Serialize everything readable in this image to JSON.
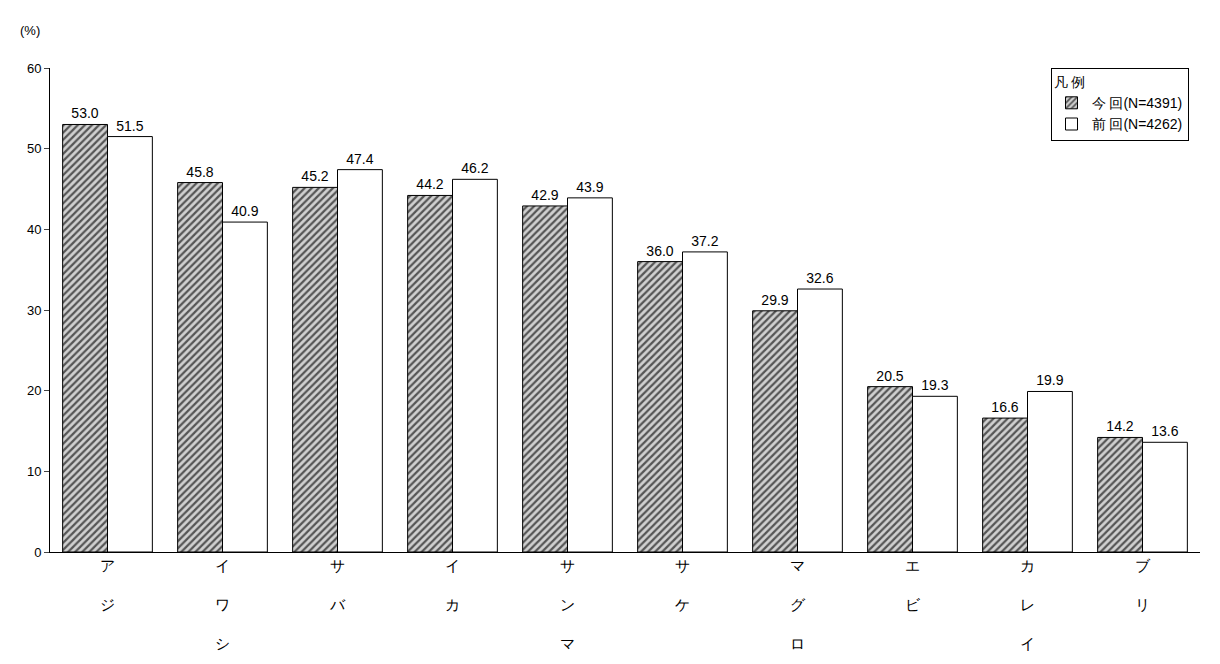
{
  "chart_data": {
    "type": "bar",
    "y_label": "(%)",
    "legend_title": "凡 例",
    "legend": "upper right",
    "categories": [
      "アジ",
      "イワシ",
      "サバ",
      "イカ",
      "サンマ",
      "サケ",
      "マグロ",
      "エビ",
      "カレイ",
      "ブリ"
    ],
    "series": [
      {
        "name": "今 回(N=4391)",
        "color": "#555555",
        "marker": "hatch",
        "values": [
          53.0,
          45.8,
          45.2,
          44.2,
          42.9,
          36.0,
          29.9,
          20.5,
          16.6,
          14.2
        ],
        "value_labels": [
          "53.0",
          "45.8",
          "45.2",
          "44.2",
          "42.9",
          "36.0",
          "29.9",
          "20.5",
          "16.6",
          "14.2"
        ]
      },
      {
        "name": "前 回(N=4262)",
        "color": "#ffffff",
        "marker": "solid",
        "values": [
          51.5,
          40.9,
          47.4,
          46.2,
          43.9,
          37.2,
          32.6,
          19.3,
          19.9,
          13.6
        ],
        "value_labels": [
          "51.5",
          "40.9",
          "47.4",
          "46.2",
          "43.9",
          "37.2",
          "32.6",
          "19.3",
          "19.9",
          "13.6"
        ]
      }
    ],
    "ylim": [
      0,
      60
    ],
    "yticks": [
      0,
      10,
      20,
      30,
      40,
      50,
      60
    ],
    "grid": false,
    "data_labels": true
  }
}
